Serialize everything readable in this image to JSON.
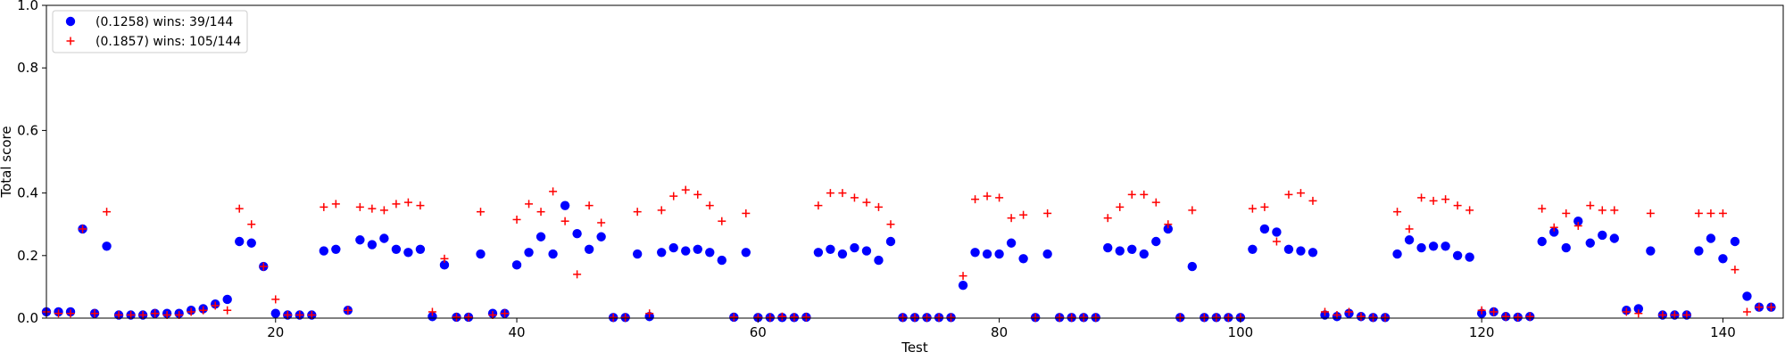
{
  "chart_data": {
    "type": "scatter",
    "title": "",
    "xlabel": "Test",
    "ylabel": "Total score",
    "xlim": [
      1,
      144
    ],
    "ylim": [
      0,
      1.0
    ],
    "x_ticks": [
      "20",
      "40",
      "60",
      "80",
      "100",
      "120",
      "140"
    ],
    "y_ticks": [
      "0.0",
      "0.2",
      "0.4",
      "0.6",
      "0.8",
      "1.0"
    ],
    "grid": false,
    "legend_position": "top-left",
    "series": [
      {
        "name": "(0.1258) wins: 39/144",
        "marker": "circle",
        "color": "#0000ff",
        "x": [
          1,
          2,
          3,
          4,
          5,
          6,
          7,
          8,
          9,
          10,
          11,
          12,
          13,
          14,
          15,
          16,
          17,
          18,
          19,
          20,
          21,
          22,
          23,
          24,
          25,
          26,
          27,
          28,
          29,
          30,
          31,
          32,
          33,
          34,
          35,
          36,
          37,
          38,
          39,
          40,
          41,
          42,
          43,
          44,
          45,
          46,
          47,
          48,
          49,
          50,
          51,
          52,
          53,
          54,
          55,
          56,
          57,
          58,
          59,
          60,
          61,
          62,
          63,
          64,
          65,
          66,
          67,
          68,
          69,
          70,
          71,
          72,
          73,
          74,
          75,
          76,
          77,
          78,
          79,
          80,
          81,
          82,
          83,
          84,
          85,
          86,
          87,
          88,
          89,
          90,
          91,
          92,
          93,
          94,
          95,
          96,
          97,
          98,
          99,
          100,
          101,
          102,
          103,
          104,
          105,
          106,
          107,
          108,
          109,
          110,
          111,
          112,
          113,
          114,
          115,
          116,
          117,
          118,
          119,
          120,
          121,
          122,
          123,
          124,
          125,
          126,
          127,
          128,
          129,
          130,
          131,
          132,
          133,
          134,
          135,
          136,
          137,
          138,
          139,
          140,
          141,
          142,
          143,
          144
        ],
        "y": [
          0.02,
          0.02,
          0.02,
          0.285,
          0.015,
          0.23,
          0.01,
          0.01,
          0.01,
          0.015,
          0.015,
          0.015,
          0.025,
          0.03,
          0.045,
          0.06,
          0.245,
          0.24,
          0.165,
          0.015,
          0.01,
          0.01,
          0.01,
          0.215,
          0.22,
          0.025,
          0.25,
          0.235,
          0.255,
          0.22,
          0.21,
          0.22,
          0.005,
          0.17,
          0.003,
          0.003,
          0.205,
          0.015,
          0.015,
          0.17,
          0.21,
          0.26,
          0.205,
          0.36,
          0.27,
          0.22,
          0.26,
          0.002,
          0.002,
          0.205,
          0.005,
          0.21,
          0.225,
          0.215,
          0.22,
          0.21,
          0.185,
          0.003,
          0.21,
          0.002,
          0.002,
          0.002,
          0.002,
          0.003,
          0.21,
          0.22,
          0.205,
          0.225,
          0.215,
          0.185,
          0.245,
          0.002,
          0.002,
          0.002,
          0.002,
          0.002,
          0.105,
          0.21,
          0.205,
          0.205,
          0.24,
          0.19,
          0.002,
          0.205,
          0.002,
          0.002,
          0.002,
          0.002,
          0.225,
          0.215,
          0.22,
          0.205,
          0.245,
          0.285,
          0.002,
          0.165,
          0.002,
          0.002,
          0.002,
          0.002,
          0.22,
          0.285,
          0.275,
          0.22,
          0.215,
          0.21,
          0.01,
          0.005,
          0.015,
          0.005,
          0.002,
          0.002,
          0.205,
          0.25,
          0.225,
          0.23,
          0.23,
          0.2,
          0.195,
          0.015,
          0.02,
          0.005,
          0.003,
          0.005,
          0.245,
          0.275,
          0.225,
          0.31,
          0.24,
          0.265,
          0.255,
          0.025,
          0.03,
          0.215,
          0.01,
          0.01,
          0.01,
          0.215,
          0.255,
          0.19,
          0.245,
          0.07,
          0.035,
          0.035
        ]
      },
      {
        "name": "(0.1857) wins: 105/144",
        "marker": "plus",
        "color": "#ff0000",
        "x": [
          1,
          2,
          3,
          4,
          5,
          6,
          7,
          8,
          9,
          10,
          11,
          12,
          13,
          14,
          15,
          16,
          17,
          18,
          19,
          20,
          21,
          22,
          23,
          24,
          25,
          26,
          27,
          28,
          29,
          30,
          31,
          32,
          33,
          34,
          35,
          36,
          37,
          38,
          39,
          40,
          41,
          42,
          43,
          44,
          45,
          46,
          47,
          48,
          49,
          50,
          51,
          52,
          53,
          54,
          55,
          56,
          57,
          58,
          59,
          60,
          61,
          62,
          63,
          64,
          65,
          66,
          67,
          68,
          69,
          70,
          71,
          72,
          73,
          74,
          75,
          76,
          77,
          78,
          79,
          80,
          81,
          82,
          83,
          84,
          85,
          86,
          87,
          88,
          89,
          90,
          91,
          92,
          93,
          94,
          95,
          96,
          97,
          98,
          99,
          100,
          101,
          102,
          103,
          104,
          105,
          106,
          107,
          108,
          109,
          110,
          111,
          112,
          113,
          114,
          115,
          116,
          117,
          118,
          119,
          120,
          121,
          122,
          123,
          124,
          125,
          126,
          127,
          128,
          129,
          130,
          131,
          132,
          133,
          134,
          135,
          136,
          137,
          138,
          139,
          140,
          141,
          142,
          143,
          144
        ],
        "y": [
          0.02,
          0.015,
          0.015,
          0.285,
          0.015,
          0.34,
          0.01,
          0.01,
          0.01,
          0.015,
          0.01,
          0.01,
          0.02,
          0.025,
          0.04,
          0.025,
          0.35,
          0.3,
          0.165,
          0.06,
          0.01,
          0.01,
          0.01,
          0.355,
          0.365,
          0.025,
          0.355,
          0.35,
          0.345,
          0.365,
          0.37,
          0.36,
          0.02,
          0.19,
          0.003,
          0.003,
          0.34,
          0.01,
          0.015,
          0.315,
          0.365,
          0.34,
          0.405,
          0.31,
          0.14,
          0.36,
          0.305,
          0.002,
          0.002,
          0.34,
          0.015,
          0.345,
          0.39,
          0.41,
          0.395,
          0.36,
          0.31,
          0.003,
          0.335,
          0.002,
          0.002,
          0.005,
          0.003,
          0.003,
          0.36,
          0.4,
          0.4,
          0.385,
          0.37,
          0.355,
          0.3,
          0.002,
          0.002,
          0.002,
          0.002,
          0.002,
          0.135,
          0.38,
          0.39,
          0.385,
          0.32,
          0.33,
          0.002,
          0.335,
          0.002,
          0.002,
          0.002,
          0.002,
          0.32,
          0.355,
          0.395,
          0.395,
          0.37,
          0.3,
          0.002,
          0.345,
          0.002,
          0.002,
          0.002,
          0.002,
          0.35,
          0.355,
          0.245,
          0.395,
          0.4,
          0.375,
          0.02,
          0.01,
          0.02,
          0.005,
          0.002,
          0.002,
          0.34,
          0.285,
          0.385,
          0.375,
          0.38,
          0.36,
          0.345,
          0.025,
          0.02,
          0.005,
          0.003,
          0.005,
          0.35,
          0.29,
          0.335,
          0.295,
          0.36,
          0.345,
          0.345,
          0.02,
          0.015,
          0.335,
          0.01,
          0.01,
          0.01,
          0.335,
          0.335,
          0.335,
          0.155,
          0.02,
          0.035,
          0.035
        ]
      }
    ]
  }
}
